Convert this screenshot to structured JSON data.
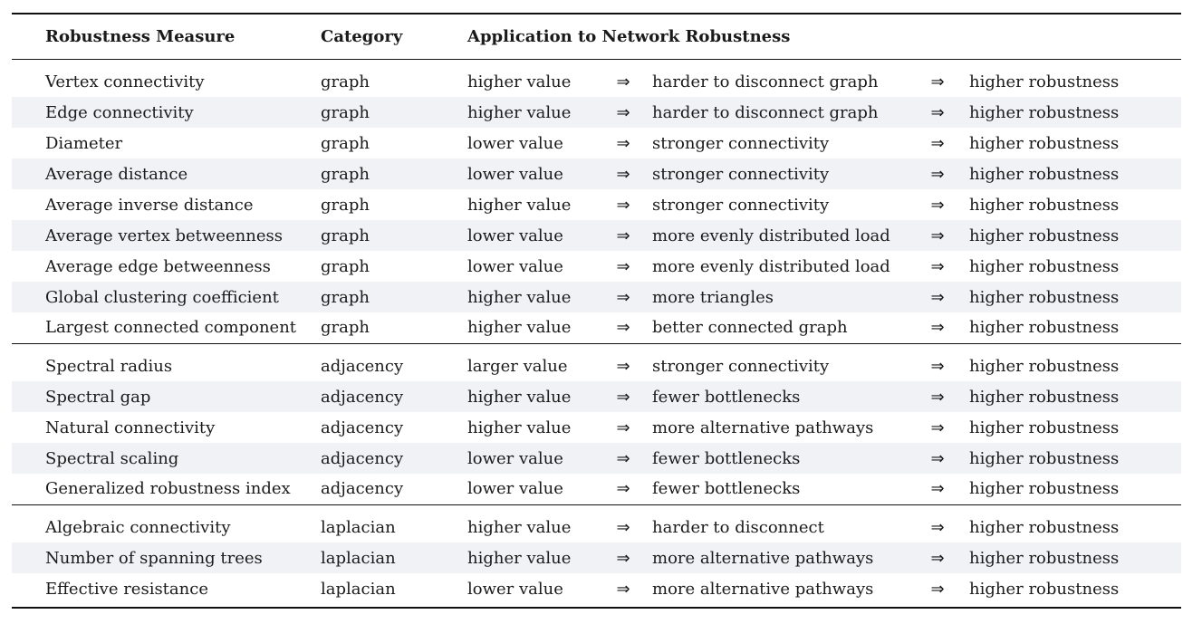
{
  "header": {
    "measure": "Robustness Measure",
    "category": "Category",
    "application": "Application to Network Robustness"
  },
  "arrow": "⇒",
  "groups": [
    {
      "rows": [
        {
          "measure": "Vertex connectivity",
          "category": "graph",
          "value": "higher value",
          "effect": "harder to disconnect graph",
          "robustness": "higher robustness"
        },
        {
          "measure": "Edge connectivity",
          "category": "graph",
          "value": "higher value",
          "effect": "harder to disconnect graph",
          "robustness": "higher robustness"
        },
        {
          "measure": "Diameter",
          "category": "graph",
          "value": "lower value",
          "effect": "stronger connectivity",
          "robustness": "higher robustness"
        },
        {
          "measure": "Average distance",
          "category": "graph",
          "value": "lower value",
          "effect": "stronger connectivity",
          "robustness": "higher robustness"
        },
        {
          "measure": "Average inverse distance",
          "category": "graph",
          "value": "higher value",
          "effect": "stronger connectivity",
          "robustness": "higher robustness"
        },
        {
          "measure": "Average vertex betweenness",
          "category": "graph",
          "value": "lower value",
          "effect": "more evenly distributed load",
          "robustness": "higher robustness"
        },
        {
          "measure": "Average edge betweenness",
          "category": "graph",
          "value": "lower value",
          "effect": "more evenly distributed load",
          "robustness": "higher robustness"
        },
        {
          "measure": "Global clustering coefficient",
          "category": "graph",
          "value": "higher value",
          "effect": "more triangles",
          "robustness": "higher robustness"
        },
        {
          "measure": "Largest connected component",
          "category": "graph",
          "value": "higher value",
          "effect": "better connected graph",
          "robustness": "higher robustness"
        }
      ]
    },
    {
      "rows": [
        {
          "measure": "Spectral radius",
          "category": "adjacency",
          "value": "larger value",
          "effect": "stronger connectivity",
          "robustness": "higher robustness"
        },
        {
          "measure": "Spectral gap",
          "category": "adjacency",
          "value": "higher value",
          "effect": "fewer bottlenecks",
          "robustness": "higher robustness"
        },
        {
          "measure": "Natural connectivity",
          "category": "adjacency",
          "value": "higher value",
          "effect": "more alternative pathways",
          "robustness": "higher robustness"
        },
        {
          "measure": "Spectral scaling",
          "category": "adjacency",
          "value": "lower value",
          "effect": "fewer bottlenecks",
          "robustness": "higher robustness"
        },
        {
          "measure": "Generalized robustness index",
          "category": "adjacency",
          "value": "lower value",
          "effect": "fewer bottlenecks",
          "robustness": "higher robustness"
        }
      ]
    },
    {
      "rows": [
        {
          "measure": "Algebraic connectivity",
          "category": "laplacian",
          "value": "higher value",
          "effect": "harder to disconnect",
          "robustness": "higher robustness"
        },
        {
          "measure": "Number of spanning trees",
          "category": "laplacian",
          "value": "higher value",
          "effect": "more alternative pathways",
          "robustness": "higher robustness"
        },
        {
          "measure": "Effective resistance",
          "category": "laplacian",
          "value": "lower value",
          "effect": "more alternative pathways",
          "robustness": "higher robustness"
        }
      ]
    }
  ]
}
